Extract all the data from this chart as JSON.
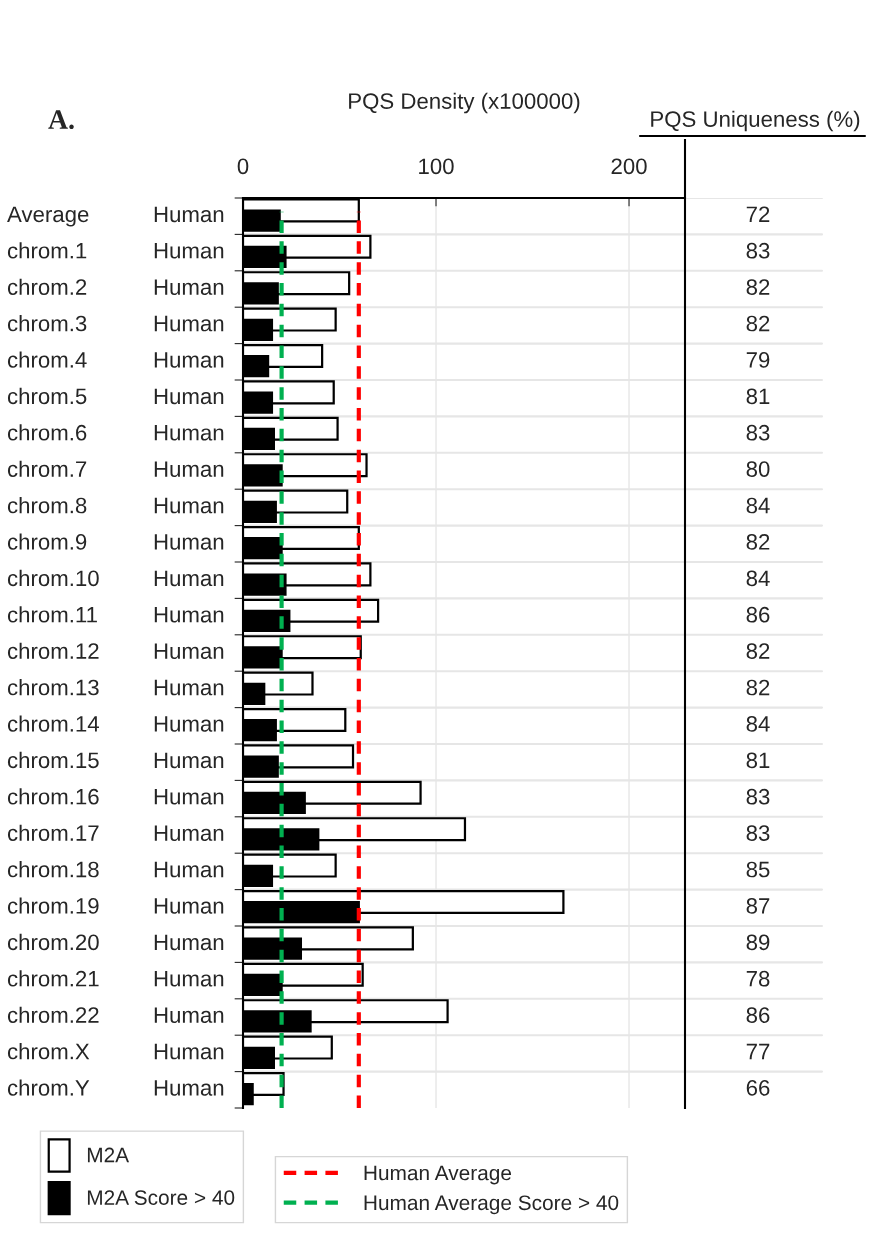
{
  "chart_data": [
    {
      "type": "bar",
      "orientation": "horizontal",
      "xlabel": "PQS Density (x100000)",
      "annotations": [
        "A."
      ],
      "categories": [
        "Average",
        "chrom.1",
        "chrom.2",
        "chrom.3",
        "chrom.4",
        "chrom.5",
        "chrom.6",
        "chrom.7",
        "chrom.8",
        "chrom.9",
        "chrom.10",
        "chrom.11",
        "chrom.12",
        "chrom.13",
        "chrom.14",
        "chrom.15",
        "chrom.16",
        "chrom.17",
        "chrom.18",
        "chrom.19",
        "chrom.20",
        "chrom.21",
        "chrom.22",
        "chrom.X",
        "chrom.Y"
      ],
      "y2_categories": [
        "Human",
        "Human",
        "Human",
        "Human",
        "Human",
        "Human",
        "Human",
        "Human",
        "Human",
        "Human",
        "Human",
        "Human",
        "Human",
        "Human",
        "Human",
        "Human",
        "Human",
        "Human",
        "Human",
        "Human",
        "Human",
        "Human",
        "Human",
        "Human",
        "Human"
      ],
      "series": [
        {
          "name": "M2A",
          "color": "#ffffff",
          "values": [
            60,
            66,
            55,
            48,
            41,
            47,
            49,
            64,
            54,
            60,
            66,
            70,
            61,
            36,
            53,
            57,
            92,
            115,
            48,
            166,
            88,
            62,
            106,
            46,
            21
          ]
        },
        {
          "name": "M2A Score > 40",
          "color": "#000000",
          "values": [
            19,
            22,
            18,
            15,
            13,
            15,
            16,
            20,
            17,
            20,
            22,
            24,
            20,
            11,
            17,
            18,
            32,
            39,
            15,
            60,
            30,
            20,
            35,
            16,
            5
          ]
        }
      ],
      "ref_lines": [
        {
          "axis": "x",
          "value": 60,
          "label": "Human Average",
          "color": "#ff0000",
          "line_style": "dashed"
        },
        {
          "axis": "x",
          "value": 20,
          "label": "Human Average Score > 40",
          "color": "#00b050",
          "line_style": "dashed"
        }
      ],
      "xlim": [
        0,
        229
      ],
      "xticks": [
        0,
        100,
        200
      ],
      "grid": true,
      "legend": "bottom"
    },
    {
      "type": "other",
      "title": "PQS Uniqueness (%)",
      "values": [
        72,
        83,
        82,
        82,
        79,
        81,
        83,
        80,
        84,
        82,
        84,
        86,
        82,
        82,
        84,
        81,
        83,
        83,
        85,
        87,
        89,
        78,
        86,
        77,
        66
      ],
      "data_labels": true
    }
  ]
}
